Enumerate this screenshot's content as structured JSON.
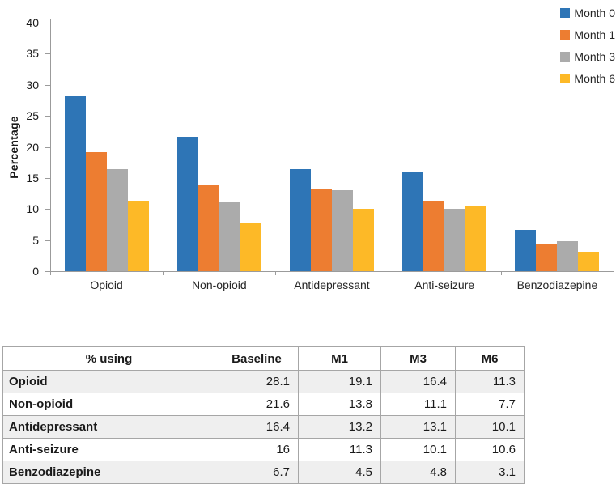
{
  "chart_data": {
    "type": "bar",
    "title": "",
    "xlabel": "",
    "ylabel": "Percentage",
    "ylim": [
      0,
      40
    ],
    "yticks": [
      0,
      5,
      10,
      15,
      20,
      25,
      30,
      35,
      40
    ],
    "grid": false,
    "legend_position": "top-right",
    "categories": [
      "Opioid",
      "Non-opioid",
      "Antidepressant",
      "Anti-seizure",
      "Benzodiazepine"
    ],
    "series": [
      {
        "name": "Month 0",
        "color": "#2E75B6",
        "values": [
          28.1,
          21.6,
          16.4,
          16,
          6.7
        ]
      },
      {
        "name": "Month 1",
        "color": "#ED7D31",
        "values": [
          19.1,
          13.8,
          13.2,
          11.3,
          4.5
        ]
      },
      {
        "name": "Month 3",
        "color": "#ABABAB",
        "values": [
          16.4,
          11.1,
          13.1,
          10.1,
          4.8
        ]
      },
      {
        "name": "Month 6",
        "color": "#FDB927",
        "values": [
          11.3,
          7.7,
          10.1,
          10.6,
          3.1
        ]
      }
    ]
  },
  "table": {
    "headers": [
      "% using",
      "Baseline",
      "M1",
      "M3",
      "M6"
    ],
    "rows": [
      {
        "label": "Opioid",
        "values": [
          "28.1",
          "19.1",
          "16.4",
          "11.3"
        ]
      },
      {
        "label": "Non-opioid",
        "values": [
          "21.6",
          "13.8",
          "11.1",
          "7.7"
        ]
      },
      {
        "label": "Antidepressant",
        "values": [
          "16.4",
          "13.2",
          "13.1",
          "10.1"
        ]
      },
      {
        "label": "Anti-seizure",
        "values": [
          "16",
          "11.3",
          "10.1",
          "10.6"
        ]
      },
      {
        "label": "Benzodiazepine",
        "values": [
          "6.7",
          "4.5",
          "4.8",
          "3.1"
        ]
      }
    ],
    "stripe_color": "#EFEFEF",
    "border_color": "#A6A6A6"
  }
}
